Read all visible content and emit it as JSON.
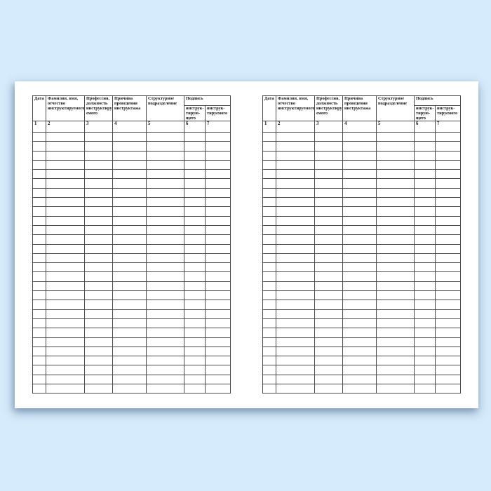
{
  "page": {
    "background_color": "#d6ebfc",
    "paper_color": "#ffffff",
    "shadow_color": "rgba(96,128,160,0.5)",
    "line_color": "#4a4a4a",
    "text_color": "#151515"
  },
  "journal": {
    "headers": {
      "date": "Дата",
      "name": "Фамилия, имя,\nотчество\nинструктируемого",
      "profession": "Профессия,\nдолжность\nинструктиру-\nемого",
      "reason": "Причина\nпроведения\nинструктажа",
      "unit": "Структурное\nподразделение",
      "signature": "Подпись",
      "signature_instructor": "инструк-\nтирую-\nщего",
      "signature_instructed": "инструк-\nтируемого"
    },
    "column_numbers": [
      "1",
      "2",
      "3",
      "4",
      "5",
      "6",
      "7"
    ],
    "empty_row_count": 28,
    "pages_visible": 2
  }
}
